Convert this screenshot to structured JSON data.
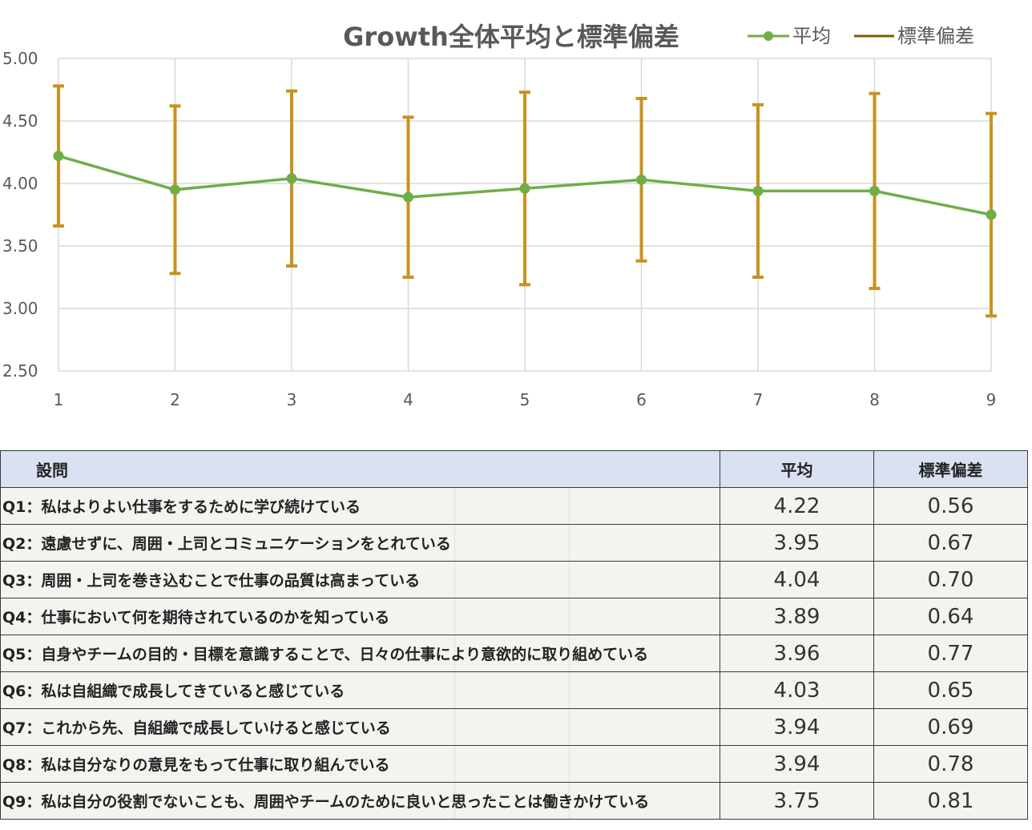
{
  "chart_data": {
    "type": "line",
    "title": "Growth全体平均と標準偏差",
    "x": [
      1,
      2,
      3,
      4,
      5,
      6,
      7,
      8,
      9
    ],
    "series": [
      {
        "name": "平均",
        "values": [
          4.22,
          3.95,
          4.04,
          3.89,
          3.96,
          4.03,
          3.94,
          3.94,
          3.75
        ],
        "color": "#70ad47"
      }
    ],
    "error_bars": {
      "name": "標準偏差",
      "values": [
        0.56,
        0.67,
        0.7,
        0.64,
        0.77,
        0.65,
        0.69,
        0.78,
        0.81
      ],
      "color": "#c8921e"
    },
    "ylim": [
      2.5,
      5.0
    ],
    "yticks": [
      "5.00",
      "4.50",
      "4.00",
      "3.50",
      "3.00",
      "2.50"
    ],
    "xticks": [
      "1",
      "2",
      "3",
      "4",
      "5",
      "6",
      "7",
      "8",
      "9"
    ],
    "grid": true,
    "legend_position": "top-right",
    "legend": [
      {
        "label": "平均",
        "marker": "line-dot",
        "color": "#70ad47"
      },
      {
        "label": "標準偏差",
        "marker": "line",
        "color": "#7f6000"
      }
    ]
  },
  "table": {
    "headers": {
      "question": "設問",
      "mean": "平均",
      "sd": "標準偏差"
    },
    "rows": [
      {
        "question": "Q1：私はよりよい仕事をするために学び続けている",
        "mean": "4.22",
        "sd": "0.56"
      },
      {
        "question": "Q2：遠慮せずに、周囲・上司とコミュニケーションをとれている",
        "mean": "3.95",
        "sd": "0.67"
      },
      {
        "question": "Q3：周囲・上司を巻き込むことで仕事の品質は高まっている",
        "mean": "4.04",
        "sd": "0.70"
      },
      {
        "question": "Q4：仕事において何を期待されているのかを知っている",
        "mean": "3.89",
        "sd": "0.64"
      },
      {
        "question": "Q5：自身やチームの目的・目標を意識することで、日々の仕事により意欲的に取り組めている",
        "mean": "3.96",
        "sd": "0.77"
      },
      {
        "question": "Q6：私は自組織で成長してきていると感じている",
        "mean": "4.03",
        "sd": "0.65"
      },
      {
        "question": "Q7：これから先、自組織で成長していけると感じている",
        "mean": "3.94",
        "sd": "0.69"
      },
      {
        "question": "Q8：私は自分なりの意見をもって仕事に取り組んでいる",
        "mean": "3.94",
        "sd": "0.78"
      },
      {
        "question": "Q9：私は自分の役割でないことも、周囲やチームのために良いと思ったことは働きかけている",
        "mean": "3.75",
        "sd": "0.81"
      }
    ]
  }
}
